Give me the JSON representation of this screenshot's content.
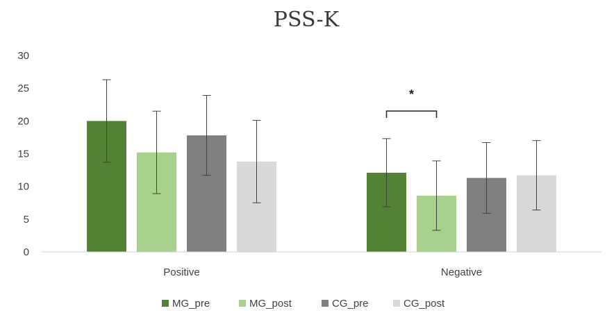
{
  "chart_data": {
    "type": "bar",
    "title": "PSS-K",
    "categories": [
      "Positive",
      "Negative"
    ],
    "yticks": [
      "0",
      "5",
      "10",
      "15",
      "20",
      "25",
      "30"
    ],
    "ylim": [
      0,
      30
    ],
    "grid": false,
    "legend_position": "bottom",
    "series": [
      {
        "name": "MG_pre",
        "color": "#548235",
        "values": [
          20.0,
          12.1
        ],
        "error": [
          6.3,
          5.2
        ]
      },
      {
        "name": "MG_post",
        "color": "#a9d18e",
        "values": [
          15.2,
          8.6
        ],
        "error": [
          6.3,
          5.3
        ]
      },
      {
        "name": "CG_pre",
        "color": "#7f7f7f",
        "values": [
          17.8,
          11.3
        ],
        "error": [
          6.1,
          5.4
        ]
      },
      {
        "name": "CG_post",
        "color": "#d9d9d9",
        "values": [
          13.8,
          11.7
        ],
        "error": [
          6.3,
          5.3
        ]
      }
    ],
    "annotation": {
      "text": "*",
      "category": "Negative",
      "from_series": "MG_pre",
      "to_series": "MG_post"
    }
  }
}
